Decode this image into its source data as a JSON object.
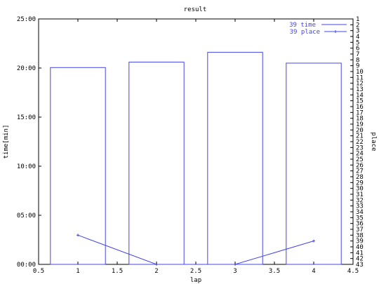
{
  "chart_data": {
    "type": "bar",
    "title": "result",
    "xlabel": "lap",
    "ylabel": "time[min]",
    "y2label": "place",
    "xlim": [
      0.5,
      4.5
    ],
    "ylim_minutes": [
      0,
      25
    ],
    "y2lim": [
      1,
      43
    ],
    "x_ticks": [
      "0.5",
      "1",
      "1.5",
      "2",
      "2.5",
      "3",
      "3.5",
      "4",
      "4.5"
    ],
    "y_ticks": [
      "00:00",
      "05:00",
      "10:00",
      "15:00",
      "20:00",
      "25:00"
    ],
    "y2_ticks": [
      "1",
      "2",
      "3",
      "4",
      "5",
      "6",
      "7",
      "8",
      "9",
      "10",
      "11",
      "12",
      "13",
      "14",
      "15",
      "16",
      "17",
      "18",
      "19",
      "20",
      "21",
      "22",
      "23",
      "24",
      "25",
      "26",
      "27",
      "28",
      "29",
      "30",
      "31",
      "32",
      "33",
      "34",
      "35",
      "36",
      "37",
      "38",
      "39",
      "40",
      "41",
      "42",
      "43"
    ],
    "bar_width": 0.7,
    "color": "#4444ee",
    "legend_position": "top-right",
    "grid": false,
    "series": [
      {
        "name": "39 time",
        "kind": "bar",
        "x": [
          1,
          2,
          3,
          4
        ],
        "values_minutes": [
          20.05,
          20.6,
          21.6,
          20.5
        ]
      },
      {
        "name": "39 place",
        "kind": "line",
        "x": [
          1,
          2,
          3,
          4
        ],
        "values": [
          38,
          43,
          43,
          39
        ]
      }
    ]
  }
}
